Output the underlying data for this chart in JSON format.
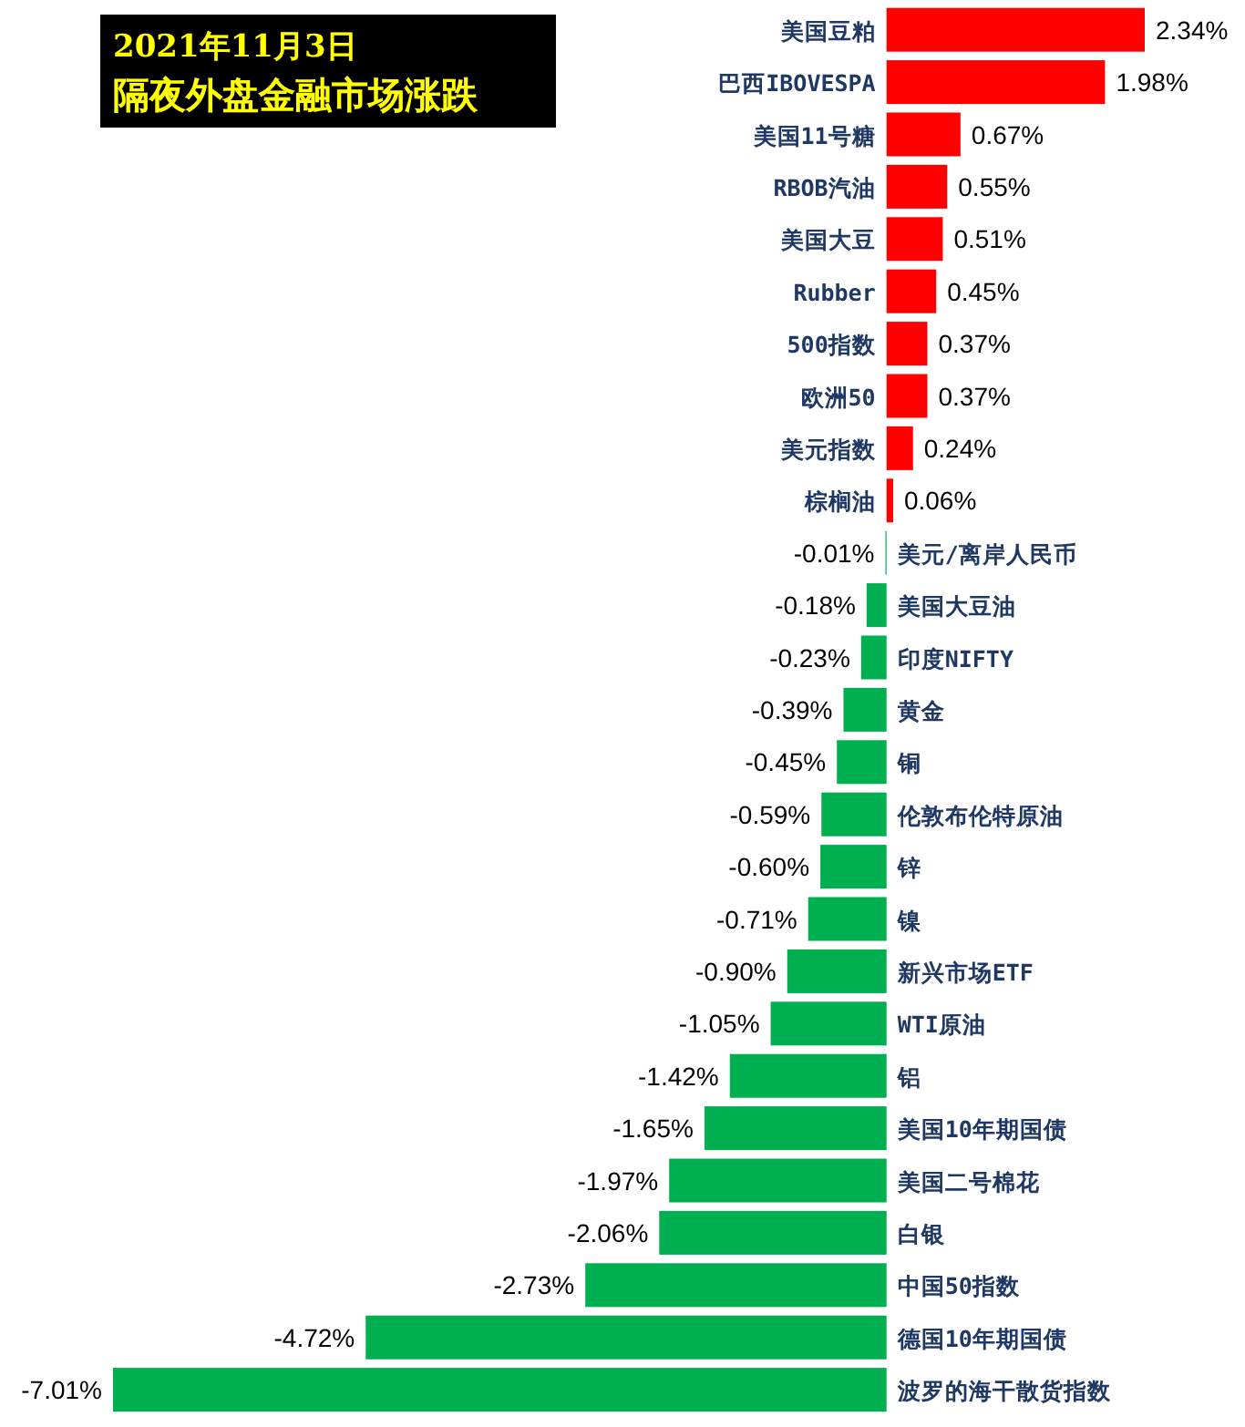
{
  "chart_data": {
    "type": "bar",
    "orientation": "horizontal",
    "title": "2021年11月3日",
    "subtitle": "隔夜外盘金融市场涨跌",
    "categories": [
      "美国豆粕",
      "巴西IBOVESPA",
      "美国11号糖",
      "RBOB汽油",
      "美国大豆",
      "Rubber",
      "500指数",
      "欧洲50",
      "美元指数",
      "棕榈油",
      "美元/离岸人民币",
      "美国大豆油",
      "印度NIFTY",
      "黄金",
      "铜",
      "伦敦布伦特原油",
      "锌",
      "镍",
      "新兴市场ETF",
      "WTI原油",
      "铝",
      "美国10年期国债",
      "美国二号棉花",
      "白银",
      "中国50指数",
      "德国10年期国债",
      "波罗的海干散货指数"
    ],
    "values": [
      2.34,
      1.98,
      0.67,
      0.55,
      0.51,
      0.45,
      0.37,
      0.37,
      0.24,
      0.06,
      -0.01,
      -0.18,
      -0.23,
      -0.39,
      -0.45,
      -0.59,
      -0.6,
      -0.71,
      -0.9,
      -1.05,
      -1.42,
      -1.65,
      -1.97,
      -2.06,
      -2.73,
      -4.72,
      -7.01
    ],
    "value_labels": [
      "2.34%",
      "1.98%",
      "0.67%",
      "0.55%",
      "0.51%",
      "0.45%",
      "0.37%",
      "0.37%",
      "0.24%",
      "0.06%",
      "-0.01%",
      "-0.18%",
      "-0.23%",
      "-0.39%",
      "-0.45%",
      "-0.59%",
      "-0.60%",
      "-0.71%",
      "-0.90%",
      "-1.05%",
      "-1.42%",
      "-1.65%",
      "-1.97%",
      "-2.06%",
      "-2.73%",
      "-4.72%",
      "-7.01%"
    ],
    "colors": [
      "#ff0000",
      "#ff0000",
      "#ff0000",
      "#ff0000",
      "#ff0000",
      "#ff0000",
      "#ff0000",
      "#ff0000",
      "#ff0000",
      "#ff0000",
      "#00b050",
      "#00b050",
      "#00b050",
      "#00b050",
      "#00b050",
      "#00b050",
      "#00b050",
      "#00b050",
      "#00b050",
      "#00b050",
      "#00b050",
      "#00b050",
      "#00b050",
      "#00b050",
      "#00b050",
      "#00b050",
      "#00b050"
    ]
  }
}
